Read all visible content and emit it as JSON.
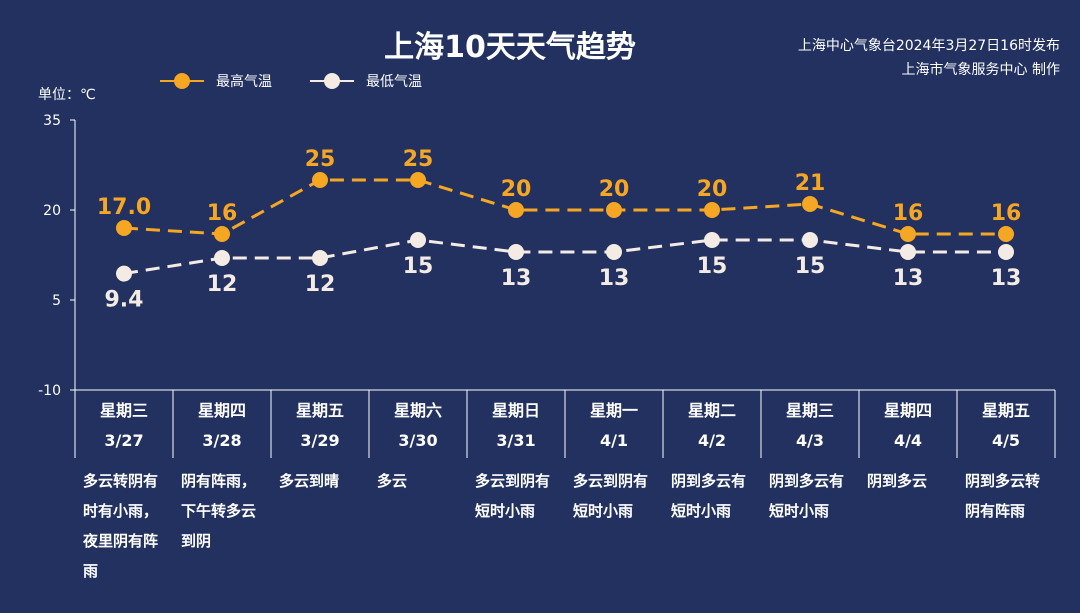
{
  "title": "上海10天天气趋势",
  "issuer": {
    "line1": "上海中心气象台2024年3月27日16时发布",
    "line2": "上海市气象服务中心 制作"
  },
  "unit_label": "单位：℃",
  "colors": {
    "background": "#22315f",
    "high": "#f5a623",
    "low": "#f4ece4",
    "text": "#ffffff"
  },
  "days": [
    {
      "weekday": "星期三",
      "date": "3/27",
      "desc": "多云转阴有时有小雨，夜里阴有阵雨"
    },
    {
      "weekday": "星期四",
      "date": "3/28",
      "desc": "阴有阵雨，下午转多云到阴"
    },
    {
      "weekday": "星期五",
      "date": "3/29",
      "desc": "多云到晴"
    },
    {
      "weekday": "星期六",
      "date": "3/30",
      "desc": "多云"
    },
    {
      "weekday": "星期日",
      "date": "3/31",
      "desc": "多云到阴有短时小雨"
    },
    {
      "weekday": "星期一",
      "date": "4/1",
      "desc": "多云到阴有短时小雨"
    },
    {
      "weekday": "星期二",
      "date": "4/2",
      "desc": "阴到多云有短时小雨"
    },
    {
      "weekday": "星期三",
      "date": "4/3",
      "desc": "阴到多云有短时小雨"
    },
    {
      "weekday": "星期四",
      "date": "4/4",
      "desc": "阴到多云"
    },
    {
      "weekday": "星期五",
      "date": "4/5",
      "desc": "阴到多云转阴有阵雨"
    }
  ],
  "chart_data": {
    "type": "line",
    "title": "上海10天天气趋势",
    "categories": [
      "3/27",
      "3/28",
      "3/29",
      "3/30",
      "3/31",
      "4/1",
      "4/2",
      "4/3",
      "4/4",
      "4/5"
    ],
    "series": [
      {
        "name": "最高气温",
        "values": [
          17.0,
          16,
          25,
          25,
          20,
          20,
          20,
          21,
          16,
          16
        ],
        "labels": [
          "17.0",
          "16",
          "25",
          "25",
          "20",
          "20",
          "20",
          "21",
          "16",
          "16"
        ],
        "color": "#f5a623"
      },
      {
        "name": "最低气温",
        "values": [
          9.4,
          12,
          12,
          15,
          13,
          13,
          15,
          15,
          13,
          13
        ],
        "labels": [
          "9.4",
          "12",
          "12",
          "15",
          "13",
          "13",
          "15",
          "15",
          "13",
          "13"
        ],
        "color": "#f4ece4"
      }
    ],
    "ylim": [
      -10,
      35
    ],
    "yticks": [
      "35",
      "20",
      "5",
      "-10"
    ],
    "ytick_values": [
      35,
      20,
      5,
      -10
    ],
    "xlabel": "",
    "ylabel": "单位：℃",
    "grid": false,
    "legend": "top-left",
    "line_style": "dashed"
  }
}
